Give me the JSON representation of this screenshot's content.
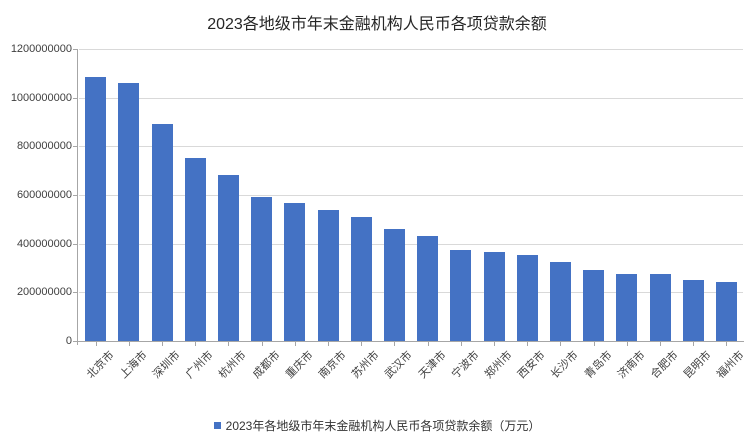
{
  "title": "2023各地级市年末金融机构人民币各项贷款余额",
  "legend": {
    "label": "2023年各地级市年末金融机构人民币各项贷款余额（万元）"
  },
  "chart_data": {
    "type": "bar",
    "title": "2023各地级市年末金融机构人民币各项贷款余额",
    "categories": [
      "北京市",
      "上海市",
      "深圳市",
      "广州市",
      "杭州市",
      "成都市",
      "重庆市",
      "南京市",
      "苏州市",
      "武汉市",
      "天津市",
      "宁波市",
      "郑州市",
      "西安市",
      "长沙市",
      "青岛市",
      "济南市",
      "合肥市",
      "昆明市",
      "福州市"
    ],
    "values": [
      1085000000,
      1060000000,
      893000000,
      754000000,
      681000000,
      592000000,
      567000000,
      538000000,
      510000000,
      462000000,
      433000000,
      375000000,
      366000000,
      353000000,
      326000000,
      293000000,
      277000000,
      275000000,
      252000000,
      243000000
    ],
    "unit": "万元",
    "xlabel": "",
    "ylabel": "",
    "ylim": [
      0,
      1200000000
    ],
    "ytick_step": 200000000,
    "ytick_labels": [
      "0",
      "200000000",
      "400000000",
      "600000000",
      "800000000",
      "1000000000",
      "1200000000"
    ],
    "grid": true,
    "legend": [
      "2023年各地级市年末金融机构人民币各项贷款余额（万元）"
    ],
    "legend_position": "bottom",
    "bar_color": "#4472c4"
  }
}
